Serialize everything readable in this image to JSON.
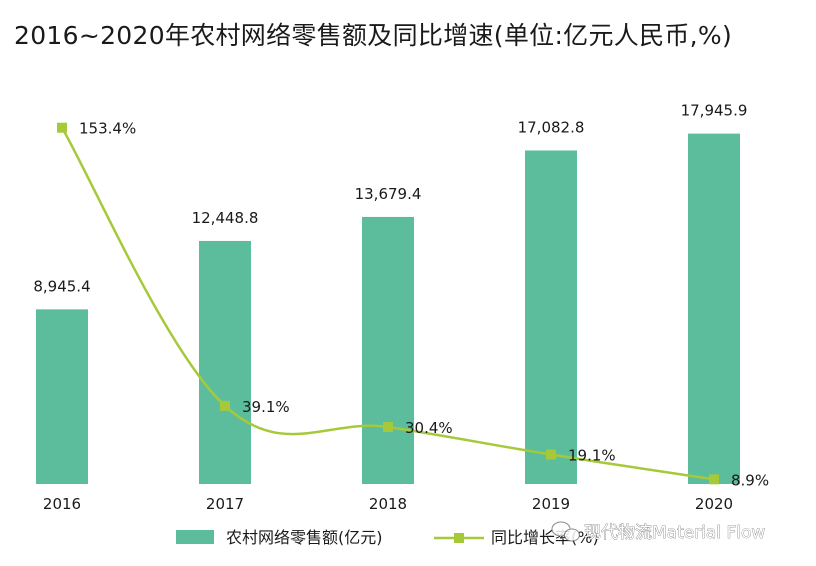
{
  "chart_data": {
    "type": "bar",
    "title": "2016~2020年农村网络零售额及同比增速(单位:亿元人民币,%)",
    "categories": [
      "2016",
      "2017",
      "2018",
      "2019",
      "2020"
    ],
    "series": [
      {
        "name": "农村网络零售额(亿元)",
        "type": "bar",
        "color": "#5cbd9c",
        "values": [
          8945.4,
          12448.8,
          13679.4,
          17082.8,
          17945.9
        ],
        "labels": [
          "8,945.4",
          "12,448.8",
          "13,679.4",
          "17,082.8",
          "17,945.9"
        ]
      },
      {
        "name": "同比增长率(%)",
        "type": "line",
        "color": "#a6c93a",
        "values": [
          153.4,
          39.1,
          30.4,
          19.1,
          8.9
        ],
        "labels": [
          "153.4%",
          "39.1%",
          "30.4%",
          "19.1%",
          "8.9%"
        ]
      }
    ],
    "ylim": [
      0,
      21000
    ],
    "y2lim": [
      0,
      180
    ],
    "grid": false,
    "legend_position": "bottom"
  },
  "watermark": {
    "text": "现代物流Material Flow",
    "icon": "wechat-icon"
  }
}
